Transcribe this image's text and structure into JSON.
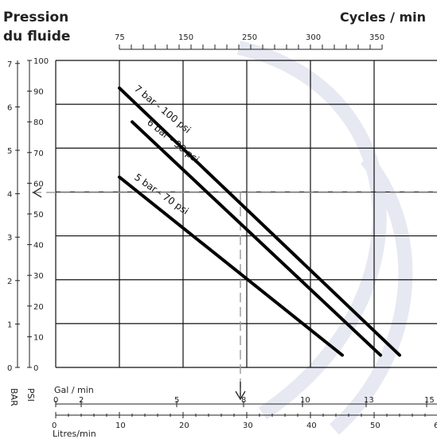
{
  "chart_data": {
    "type": "line",
    "title": "Pression du fluide",
    "title_line1": "Pression",
    "title_line2": "du fluide",
    "top_axis_title": "Cycles / min",
    "top_axis_ticks": [
      "75",
      "150",
      "250",
      "300",
      "350"
    ],
    "left_bar_label": "BAR",
    "left_bar_ticks": [
      "0",
      "1",
      "2",
      "3",
      "4",
      "5",
      "6",
      "7"
    ],
    "left_psi_label": "PSI",
    "left_psi_ticks": [
      "0",
      "10",
      "20",
      "30",
      "40",
      "50",
      "60",
      "70",
      "80",
      "90",
      "100"
    ],
    "gal_axis_title": "Gal / min",
    "gal_ticks": [
      "0",
      "2",
      "5",
      "8",
      "10",
      "13",
      "15"
    ],
    "lpm_axis_title": "Litres/min",
    "lpm_ticks": [
      "0",
      "10",
      "20",
      "30",
      "40",
      "50",
      "60"
    ],
    "xlim": [
      0,
      60
    ],
    "ylim": [
      0,
      100
    ],
    "grid": true,
    "series": [
      {
        "name": "7 bar - 100 psi",
        "x": [
          10,
          54
        ],
        "y": [
          91,
          4
        ]
      },
      {
        "name": "6 bar - 90 psi",
        "x": [
          12,
          51
        ],
        "y": [
          80,
          4
        ]
      },
      {
        "name": "5 bar - 70 psi",
        "x": [
          10,
          45
        ],
        "y": [
          62,
          4
        ]
      }
    ],
    "reference": {
      "x": 29,
      "y": 57
    }
  }
}
